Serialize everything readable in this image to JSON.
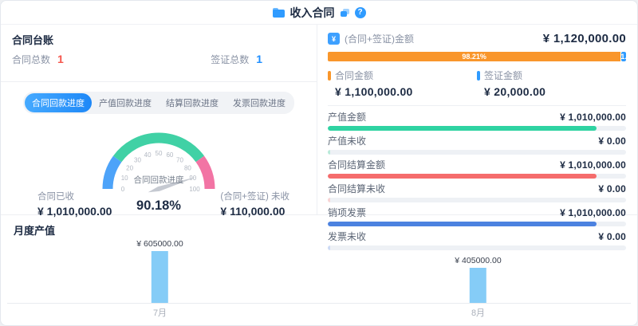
{
  "header": {
    "title": "收入合同",
    "help_glyph": "?"
  },
  "ledger": {
    "title": "合同台账",
    "stats": [
      {
        "label": "合同总数",
        "value": "1",
        "color": "#f5564d"
      },
      {
        "label": "签证总数",
        "value": "1",
        "color": "#1f8fff"
      }
    ]
  },
  "tabs": [
    {
      "label": "合同回款进度",
      "active": true
    },
    {
      "label": "产值回款进度",
      "active": false
    },
    {
      "label": "结算回款进度",
      "active": false
    },
    {
      "label": "发票回款进度",
      "active": false
    }
  ],
  "gauge_stats": [
    {
      "label": "合同已收",
      "value": "¥ 1,010,000.00"
    },
    {
      "label": "(合同+签证) 未收",
      "value": "¥ 110,000.00"
    }
  ],
  "summary": {
    "icon_glyph": "¥",
    "label": "(合同+签证)金额",
    "value": "¥ 1,120,000.00",
    "bar": {
      "main_label": "98.21%",
      "main_pct": 98.21,
      "main_color": "#f9962b",
      "rest_label": "1.",
      "rest_pct": 1.79,
      "rest_color": "#2f9bff"
    },
    "legend": [
      {
        "label": "合同金额",
        "value": "¥ 1,100,000.00",
        "color": "#f9962b"
      },
      {
        "label": "签证金额",
        "value": "¥ 20,000.00",
        "color": "#2f9bff"
      }
    ]
  },
  "rows": [
    {
      "label": "产值金额",
      "value": "¥ 1,010,000.00",
      "pct": 90.18,
      "color": "#2fd3a2"
    },
    {
      "label": "产值未收",
      "value": "¥ 0.00",
      "pct": 0.8,
      "color": "#b9ead9"
    },
    {
      "label": "合同结算金额",
      "value": "¥ 1,010,000.00",
      "pct": 90.18,
      "color": "#f56c6c"
    },
    {
      "label": "合同结算未收",
      "value": "¥ 0.00",
      "pct": 0.8,
      "color": "#f8d3d3"
    },
    {
      "label": "销项发票",
      "value": "¥ 1,010,000.00",
      "pct": 90.18,
      "color": "#4c82e0"
    },
    {
      "label": "发票未收",
      "value": "¥ 0.00",
      "pct": 0.8,
      "color": "#ccdaf5"
    }
  ],
  "monthly": {
    "title": "月度产值",
    "bars": [
      {
        "month": "7月",
        "label": "¥ 605000.00",
        "value": 605000
      },
      {
        "month": "8月",
        "label": "¥ 405000.00",
        "value": 405000
      }
    ]
  },
  "chart_data": [
    {
      "type": "gauge",
      "title": "合同回款进度",
      "value": 90.18,
      "value_label": "90.18%",
      "min": 0,
      "max": 100,
      "tick_step": 10,
      "segments": [
        {
          "from": 0,
          "to": 20,
          "color": "#4da3f9"
        },
        {
          "from": 20,
          "to": 80,
          "color": "#40d1a5"
        },
        {
          "from": 80,
          "to": 100,
          "color": "#f274a4"
        }
      ],
      "needle_color": "#c5c9d1",
      "tick_color": "#b2b8c2"
    },
    {
      "type": "bar",
      "title": "月度产值",
      "categories": [
        "7月",
        "8月"
      ],
      "values": [
        605000,
        405000
      ],
      "data_labels": [
        "¥ 605000.00",
        "¥ 405000.00"
      ],
      "bar_color": "#85ccf7",
      "ylim": [
        0,
        605000
      ],
      "grid": false,
      "legend_position": "none"
    },
    {
      "type": "stacked_bar",
      "title": "(合同+签证)金额",
      "total": 1120000,
      "series": [
        {
          "name": "合同金额",
          "value": 1100000,
          "pct": 98.21,
          "color": "#f9962b"
        },
        {
          "name": "签证金额",
          "value": 20000,
          "pct": 1.79,
          "color": "#2f9bff"
        }
      ]
    },
    {
      "type": "bar",
      "title": "金额明细",
      "categories": [
        "产值金额",
        "产值未收",
        "合同结算金额",
        "合同结算未收",
        "销项发票",
        "发票未收"
      ],
      "values": [
        1010000,
        0,
        1010000,
        0,
        1010000,
        0
      ],
      "ylim": [
        0,
        1120000
      ]
    }
  ]
}
